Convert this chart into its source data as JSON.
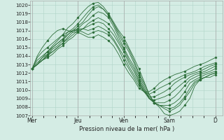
{
  "bg_color": "#d4ece4",
  "grid_color": "#b0d4c8",
  "line_color": "#2d6e3a",
  "marker_color": "#2d6e3a",
  "xlabel": "Pression niveau de la mer( hPa )",
  "ylim": [
    1007,
    1020.5
  ],
  "yticks": [
    1007,
    1008,
    1009,
    1010,
    1011,
    1012,
    1013,
    1014,
    1015,
    1016,
    1017,
    1018,
    1019,
    1020
  ],
  "x_day_labels": [
    "Mer",
    "Jeu",
    "Ven",
    "Sam",
    "D"
  ],
  "x_day_positions": [
    0,
    24,
    48,
    72,
    96
  ],
  "xlim": [
    -1,
    100
  ],
  "series": [
    [
      1012.5,
      1013.0,
      1013.8,
      1014.5,
      1015.2,
      1015.8,
      1016.5,
      1017.3,
      1017.8,
      1018.5,
      1019.2,
      1019.8,
      1020.2,
      1020.3,
      1019.8,
      1019.0,
      1018.0,
      1017.0,
      1016.2,
      1015.0,
      1013.8,
      1012.5,
      1011.0,
      1009.5,
      1008.5,
      1008.0,
      1007.2,
      1007.0,
      1007.2,
      1007.5,
      1008.2,
      1009.0,
      1010.5,
      1011.2,
      1011.5,
      1011.8,
      1012.0
    ],
    [
      1012.5,
      1013.0,
      1013.5,
      1014.2,
      1015.0,
      1015.5,
      1016.0,
      1016.8,
      1017.2,
      1017.8,
      1018.5,
      1019.2,
      1019.8,
      1020.0,
      1019.5,
      1018.8,
      1017.8,
      1016.8,
      1015.8,
      1014.8,
      1013.5,
      1012.0,
      1010.8,
      1009.5,
      1008.5,
      1008.2,
      1007.8,
      1007.5,
      1007.8,
      1008.2,
      1009.0,
      1009.8,
      1010.8,
      1011.2,
      1011.5,
      1011.5,
      1011.8
    ],
    [
      1012.5,
      1013.0,
      1013.5,
      1014.0,
      1014.8,
      1015.2,
      1015.8,
      1016.5,
      1017.0,
      1017.5,
      1018.0,
      1018.8,
      1019.5,
      1019.8,
      1019.5,
      1018.8,
      1017.8,
      1016.5,
      1015.5,
      1014.5,
      1013.2,
      1011.8,
      1010.5,
      1009.2,
      1008.5,
      1008.2,
      1008.0,
      1007.8,
      1008.0,
      1008.5,
      1009.2,
      1010.2,
      1011.0,
      1011.3,
      1011.5,
      1011.8,
      1012.0
    ],
    [
      1012.5,
      1013.0,
      1013.5,
      1014.0,
      1014.5,
      1015.0,
      1015.5,
      1016.2,
      1016.8,
      1017.2,
      1017.8,
      1018.2,
      1018.8,
      1019.2,
      1019.0,
      1018.5,
      1017.5,
      1016.2,
      1015.0,
      1013.8,
      1012.8,
      1011.5,
      1010.2,
      1009.0,
      1008.5,
      1008.2,
      1008.2,
      1008.2,
      1008.5,
      1009.0,
      1009.8,
      1010.8,
      1011.2,
      1011.5,
      1011.8,
      1012.0,
      1012.2
    ],
    [
      1012.5,
      1013.0,
      1013.5,
      1013.8,
      1014.2,
      1014.8,
      1015.2,
      1015.8,
      1016.2,
      1016.8,
      1017.2,
      1017.8,
      1018.2,
      1018.5,
      1018.2,
      1017.8,
      1017.0,
      1015.8,
      1014.8,
      1013.5,
      1012.5,
      1011.2,
      1010.0,
      1009.0,
      1008.5,
      1008.5,
      1008.5,
      1008.8,
      1009.2,
      1009.8,
      1010.5,
      1011.2,
      1011.5,
      1011.8,
      1012.0,
      1012.2,
      1012.5
    ],
    [
      1012.5,
      1013.2,
      1013.8,
      1014.2,
      1014.5,
      1015.0,
      1015.5,
      1016.0,
      1016.5,
      1017.0,
      1017.2,
      1017.5,
      1017.8,
      1018.0,
      1017.8,
      1017.2,
      1016.5,
      1015.5,
      1014.5,
      1013.2,
      1012.2,
      1011.0,
      1009.8,
      1009.0,
      1008.8,
      1009.0,
      1009.2,
      1009.5,
      1010.0,
      1010.5,
      1011.0,
      1011.5,
      1011.8,
      1012.0,
      1012.2,
      1012.5,
      1012.8
    ],
    [
      1012.5,
      1013.5,
      1014.0,
      1014.5,
      1015.0,
      1015.5,
      1016.0,
      1016.5,
      1017.0,
      1017.2,
      1017.2,
      1017.0,
      1017.2,
      1017.5,
      1017.2,
      1016.8,
      1016.0,
      1015.0,
      1014.0,
      1012.8,
      1011.8,
      1010.8,
      1009.8,
      1009.2,
      1009.2,
      1009.5,
      1009.8,
      1010.2,
      1010.8,
      1011.2,
      1011.5,
      1011.8,
      1012.0,
      1012.2,
      1012.5,
      1012.8,
      1013.0
    ],
    [
      1012.5,
      1013.8,
      1014.5,
      1015.0,
      1015.5,
      1016.0,
      1016.5,
      1016.8,
      1017.0,
      1017.0,
      1016.8,
      1016.5,
      1016.8,
      1017.0,
      1016.8,
      1016.5,
      1015.8,
      1014.8,
      1013.5,
      1012.5,
      1011.5,
      1010.5,
      1009.8,
      1009.5,
      1009.8,
      1010.2,
      1010.5,
      1010.8,
      1011.2,
      1011.5,
      1011.8,
      1012.0,
      1012.2,
      1012.5,
      1012.8,
      1013.0,
      1013.2
    ],
    [
      1012.5,
      1014.0,
      1015.0,
      1015.8,
      1016.5,
      1017.0,
      1017.2,
      1017.0,
      1016.8,
      1016.8,
      1016.5,
      1016.2,
      1016.2,
      1016.5,
      1016.2,
      1015.8,
      1015.2,
      1014.2,
      1013.0,
      1012.0,
      1011.2,
      1010.2,
      1009.8,
      1009.8,
      1010.2,
      1010.8,
      1011.2,
      1011.5,
      1011.8,
      1012.0,
      1012.2,
      1012.5,
      1012.8,
      1013.0,
      1013.2,
      1013.5,
      1013.8
    ]
  ]
}
